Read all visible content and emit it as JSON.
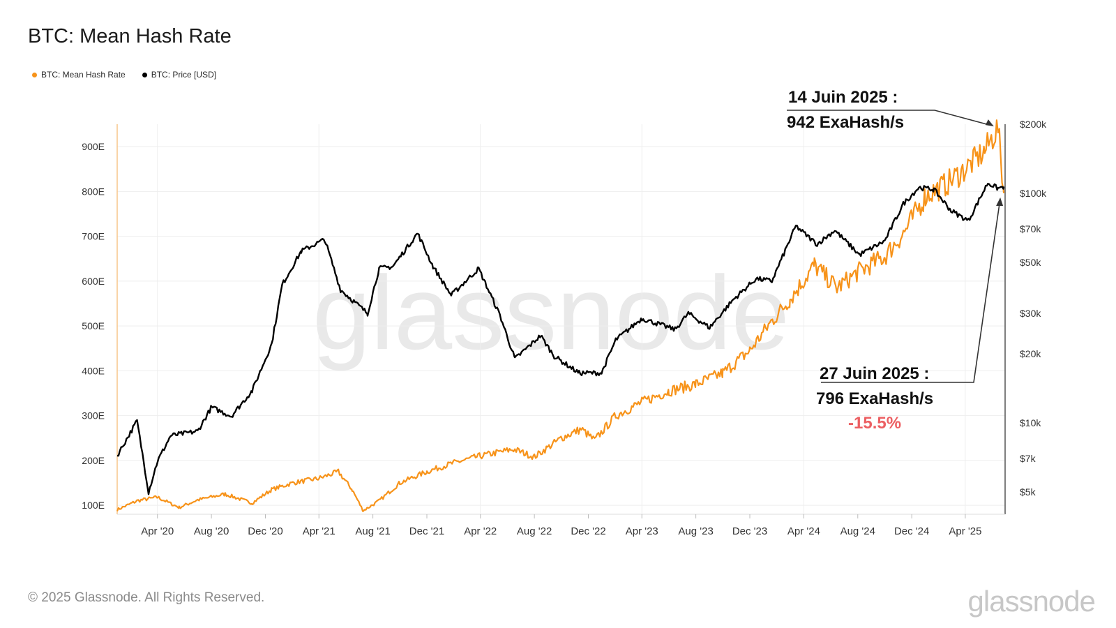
{
  "page_title": "BTC: Mean Hash Rate",
  "legend": [
    {
      "label": "BTC: Mean Hash Rate",
      "color": "#f7931a"
    },
    {
      "label": "BTC: Price [USD]",
      "color": "#000000"
    }
  ],
  "footer": {
    "copyright": "© 2025 Glassnode. All Rights Reserved.",
    "logo": "glassnode"
  },
  "watermark": "glassnode",
  "annotations": {
    "peak_date": "14 Juin 2025 :",
    "peak_value": "942 ExaHash/s",
    "current_date": "27 Juin 2025 :",
    "current_value": "796 ExaHash/s",
    "change": "-15.5%"
  },
  "chart_data": {
    "type": "line",
    "title": "BTC: Mean Hash Rate",
    "x_ticks": [
      "Apr '20",
      "Aug '20",
      "Dec '20",
      "Apr '21",
      "Aug '21",
      "Dec '21",
      "Apr '22",
      "Aug '22",
      "Dec '22",
      "Apr '23",
      "Aug '23",
      "Dec '23",
      "Apr '24",
      "Aug '24",
      "Dec '24",
      "Apr '25"
    ],
    "x_range": [
      "2020-01-01",
      "2025-06-30"
    ],
    "y_left": {
      "ticks": [
        100,
        200,
        300,
        400,
        500,
        600,
        700,
        800,
        900
      ],
      "tick_labels": [
        "100E",
        "200E",
        "300E",
        "400E",
        "500E",
        "600E",
        "700E",
        "800E",
        "900E"
      ],
      "range": [
        80,
        950
      ]
    },
    "y_right": {
      "scale": "log",
      "ticks": [
        5000,
        7000,
        10000,
        20000,
        30000,
        50000,
        70000,
        100000,
        200000
      ],
      "tick_labels": [
        "$5k",
        "$7k",
        "$10k",
        "$20k",
        "$30k",
        "$50k",
        "$70k",
        "$100k",
        "$200k"
      ],
      "range": [
        4000,
        200000
      ]
    },
    "grid": true,
    "legend_position": "top-left",
    "series": [
      {
        "name": "BTC: Mean Hash Rate",
        "color": "#f7931a",
        "axis": "left",
        "points": [
          [
            "2020-01-01",
            90
          ],
          [
            "2020-02-15",
            110
          ],
          [
            "2020-04-01",
            118
          ],
          [
            "2020-05-20",
            95
          ],
          [
            "2020-07-01",
            112
          ],
          [
            "2020-09-01",
            125
          ],
          [
            "2020-11-01",
            105
          ],
          [
            "2020-12-15",
            135
          ],
          [
            "2021-02-01",
            150
          ],
          [
            "2021-04-01",
            160
          ],
          [
            "2021-05-15",
            175
          ],
          [
            "2021-06-15",
            135
          ],
          [
            "2021-07-10",
            88
          ],
          [
            "2021-08-15",
            110
          ],
          [
            "2021-10-01",
            150
          ],
          [
            "2021-12-01",
            175
          ],
          [
            "2022-02-01",
            195
          ],
          [
            "2022-04-01",
            210
          ],
          [
            "2022-06-15",
            225
          ],
          [
            "2022-08-01",
            208
          ],
          [
            "2022-10-01",
            250
          ],
          [
            "2022-11-15",
            270
          ],
          [
            "2022-12-15",
            245
          ],
          [
            "2023-02-01",
            300
          ],
          [
            "2023-04-01",
            330
          ],
          [
            "2023-06-01",
            355
          ],
          [
            "2023-08-01",
            370
          ],
          [
            "2023-10-01",
            395
          ],
          [
            "2023-12-01",
            445
          ],
          [
            "2024-01-15",
            505
          ],
          [
            "2024-03-01",
            560
          ],
          [
            "2024-04-25",
            635
          ],
          [
            "2024-06-15",
            585
          ],
          [
            "2024-08-01",
            620
          ],
          [
            "2024-10-01",
            655
          ],
          [
            "2024-11-15",
            710
          ],
          [
            "2025-01-01",
            790
          ],
          [
            "2025-02-15",
            815
          ],
          [
            "2025-04-01",
            850
          ],
          [
            "2025-05-15",
            890
          ],
          [
            "2025-06-14",
            942
          ],
          [
            "2025-06-27",
            796
          ]
        ]
      },
      {
        "name": "BTC: Price [USD]",
        "color": "#000000",
        "axis": "right",
        "points": [
          [
            "2020-01-01",
            7200
          ],
          [
            "2020-02-15",
            10200
          ],
          [
            "2020-03-12",
            5000
          ],
          [
            "2020-04-01",
            6800
          ],
          [
            "2020-05-01",
            8800
          ],
          [
            "2020-07-01",
            9200
          ],
          [
            "2020-08-01",
            11700
          ],
          [
            "2020-09-15",
            10700
          ],
          [
            "2020-11-01",
            13800
          ],
          [
            "2020-12-15",
            22000
          ],
          [
            "2021-01-08",
            40000
          ],
          [
            "2021-02-20",
            56000
          ],
          [
            "2021-04-14",
            63000
          ],
          [
            "2021-05-20",
            38000
          ],
          [
            "2021-07-20",
            30000
          ],
          [
            "2021-08-15",
            47000
          ],
          [
            "2021-09-15",
            48000
          ],
          [
            "2021-11-10",
            67000
          ],
          [
            "2021-12-15",
            48000
          ],
          [
            "2022-01-25",
            36000
          ],
          [
            "2022-03-28",
            47000
          ],
          [
            "2022-05-15",
            29500
          ],
          [
            "2022-06-18",
            19000
          ],
          [
            "2022-08-15",
            24000
          ],
          [
            "2022-09-15",
            19500
          ],
          [
            "2022-11-10",
            16500
          ],
          [
            "2022-12-31",
            16500
          ],
          [
            "2023-02-01",
            23000
          ],
          [
            "2023-04-01",
            28500
          ],
          [
            "2023-06-15",
            25500
          ],
          [
            "2023-07-15",
            30000
          ],
          [
            "2023-09-01",
            26000
          ],
          [
            "2023-10-25",
            34500
          ],
          [
            "2023-12-15",
            42500
          ],
          [
            "2024-01-20",
            41500
          ],
          [
            "2024-03-14",
            72000
          ],
          [
            "2024-05-01",
            60000
          ],
          [
            "2024-06-10",
            69000
          ],
          [
            "2024-08-05",
            54000
          ],
          [
            "2024-10-01",
            62000
          ],
          [
            "2024-11-12",
            90000
          ],
          [
            "2024-12-17",
            106000
          ],
          [
            "2025-01-20",
            104000
          ],
          [
            "2025-02-28",
            84000
          ],
          [
            "2025-04-08",
            76000
          ],
          [
            "2025-05-22",
            111000
          ],
          [
            "2025-06-14",
            105000
          ],
          [
            "2025-06-27",
            107000
          ]
        ]
      }
    ]
  }
}
